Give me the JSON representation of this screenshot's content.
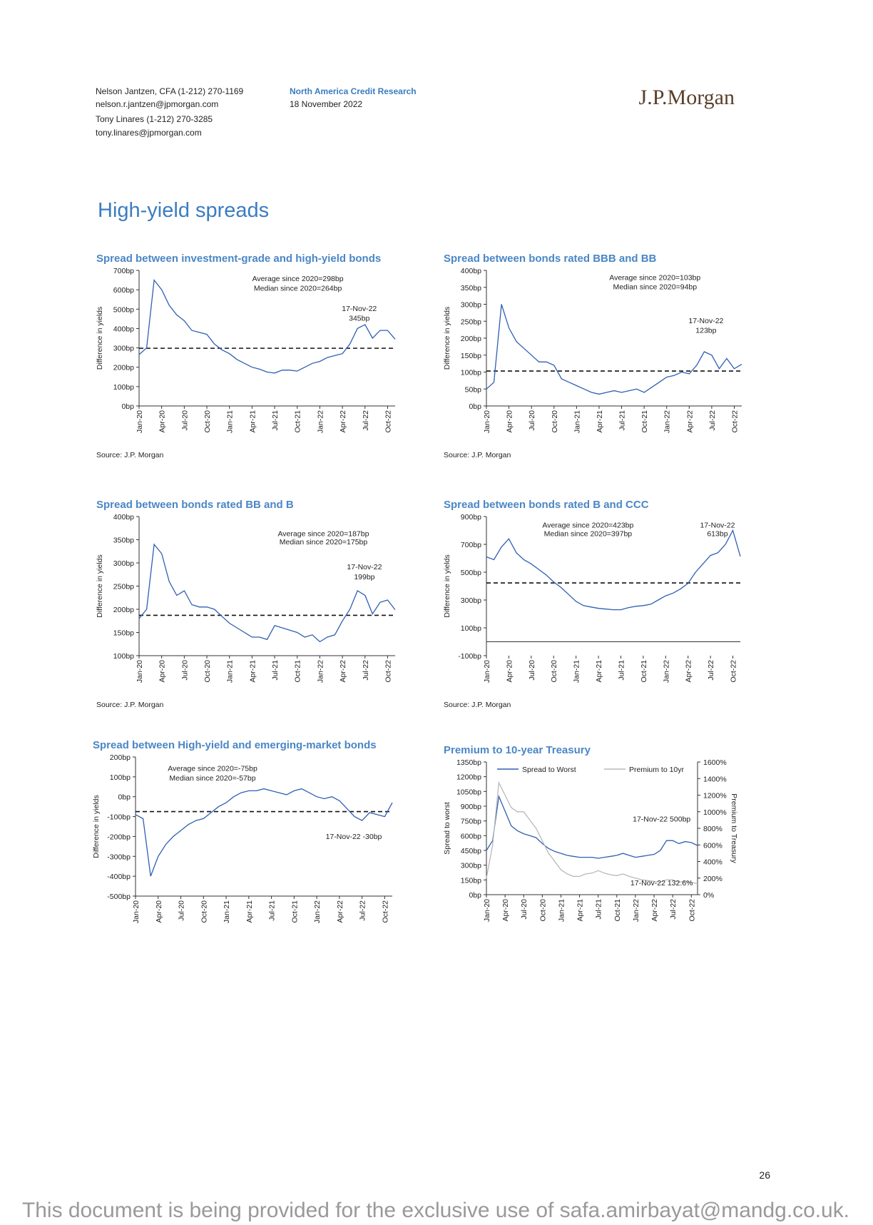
{
  "header": {
    "authors": [
      "Nelson Jantzen, CFA (1-212) 270-1169",
      "nelson.r.jantzen@jpmorgan.com",
      "Tony Linares (1-212) 270-3285",
      "tony.linares@jpmorgan.com"
    ],
    "department": "North America Credit Research",
    "date": "18 November 2022",
    "logo": "J.P.Morgan"
  },
  "section_title": "High-yield spreads",
  "chart_data": [
    {
      "type": "line",
      "title": "Spread between investment-grade and high-yield bonds",
      "y_label": "Difference in yields",
      "x": [
        "Jan-20",
        "Feb-20",
        "Mar-20",
        "Apr-20",
        "May-20",
        "Jun-20",
        "Jul-20",
        "Aug-20",
        "Sep-20",
        "Oct-20",
        "Nov-20",
        "Dec-20",
        "Jan-21",
        "Feb-21",
        "Mar-21",
        "Apr-21",
        "May-21",
        "Jun-21",
        "Jul-21",
        "Aug-21",
        "Sep-21",
        "Oct-21",
        "Nov-21",
        "Dec-21",
        "Jan-22",
        "Feb-22",
        "Mar-22",
        "Apr-22",
        "May-22",
        "Jun-22",
        "Jul-22",
        "Aug-22",
        "Sep-22",
        "Oct-22",
        "Nov-22"
      ],
      "xticks": [
        "Jan-20",
        "Apr-20",
        "Jul-20",
        "Oct-20",
        "Jan-21",
        "Apr-21",
        "Jul-21",
        "Oct-21",
        "Jan-22",
        "Apr-22",
        "Jul-22",
        "Oct-22"
      ],
      "ylim": [
        0,
        700
      ],
      "yticks": [
        {
          "value": 0,
          "label": "0bp"
        },
        {
          "value": 100,
          "label": "100bp"
        },
        {
          "value": 200,
          "label": "200bp"
        },
        {
          "value": 300,
          "label": "300bp"
        },
        {
          "value": 400,
          "label": "400bp"
        },
        {
          "value": 500,
          "label": "500bp"
        },
        {
          "value": 600,
          "label": "600bp"
        },
        {
          "value": 700,
          "label": "700bp"
        }
      ],
      "series": [
        {
          "color": "#2f5fb3",
          "values": [
            265,
            300,
            650,
            600,
            520,
            470,
            440,
            390,
            380,
            370,
            320,
            290,
            270,
            240,
            220,
            200,
            190,
            175,
            170,
            185,
            185,
            180,
            200,
            220,
            230,
            250,
            260,
            270,
            320,
            400,
            420,
            350,
            390,
            390,
            345
          ]
        }
      ],
      "reference_line": 298,
      "annotations": [
        "Average since 2020=298bp",
        "Median since 2020=264bp",
        "17-Nov-22",
        "345bp"
      ],
      "source": "Source: J.P. Morgan"
    },
    {
      "type": "line",
      "title": "Spread between bonds rated BBB and BB",
      "y_label": "Difference in yields",
      "x": [
        "Jan-20",
        "Feb-20",
        "Mar-20",
        "Apr-20",
        "May-20",
        "Jun-20",
        "Jul-20",
        "Aug-20",
        "Sep-20",
        "Oct-20",
        "Nov-20",
        "Dec-20",
        "Jan-21",
        "Feb-21",
        "Mar-21",
        "Apr-21",
        "May-21",
        "Jun-21",
        "Jul-21",
        "Aug-21",
        "Sep-21",
        "Oct-21",
        "Nov-21",
        "Dec-21",
        "Jan-22",
        "Feb-22",
        "Mar-22",
        "Apr-22",
        "May-22",
        "Jun-22",
        "Jul-22",
        "Aug-22",
        "Sep-22",
        "Oct-22",
        "Nov-22"
      ],
      "xticks": [
        "Jan-20",
        "Apr-20",
        "Jul-20",
        "Oct-20",
        "Jan-21",
        "Apr-21",
        "Jul-21",
        "Oct-21",
        "Jan-22",
        "Apr-22",
        "Jul-22",
        "Oct-22"
      ],
      "ylim": [
        0,
        400
      ],
      "yticks": [
        {
          "value": 0,
          "label": "0bp"
        },
        {
          "value": 50,
          "label": "50bp"
        },
        {
          "value": 100,
          "label": "100bp"
        },
        {
          "value": 150,
          "label": "150bp"
        },
        {
          "value": 200,
          "label": "200bp"
        },
        {
          "value": 250,
          "label": "250bp"
        },
        {
          "value": 300,
          "label": "300bp"
        },
        {
          "value": 350,
          "label": "350bp"
        },
        {
          "value": 400,
          "label": "400bp"
        }
      ],
      "series": [
        {
          "color": "#2f5fb3",
          "values": [
            50,
            70,
            300,
            230,
            190,
            170,
            150,
            130,
            130,
            120,
            80,
            70,
            60,
            50,
            40,
            35,
            40,
            45,
            40,
            45,
            50,
            40,
            55,
            70,
            85,
            90,
            100,
            95,
            120,
            160,
            150,
            110,
            140,
            110,
            123
          ]
        }
      ],
      "reference_line": 103,
      "annotations": [
        "Average since 2020=103bp",
        "Median since 2020=94bp",
        "17-Nov-22",
        "123bp"
      ],
      "source": "Source: J.P. Morgan"
    },
    {
      "type": "line",
      "title": "Spread between bonds rated BB and B",
      "y_label": "Difference in yields",
      "x": [
        "Jan-20",
        "Feb-20",
        "Mar-20",
        "Apr-20",
        "May-20",
        "Jun-20",
        "Jul-20",
        "Aug-20",
        "Sep-20",
        "Oct-20",
        "Nov-20",
        "Dec-20",
        "Jan-21",
        "Feb-21",
        "Mar-21",
        "Apr-21",
        "May-21",
        "Jun-21",
        "Jul-21",
        "Aug-21",
        "Sep-21",
        "Oct-21",
        "Nov-21",
        "Dec-21",
        "Jan-22",
        "Feb-22",
        "Mar-22",
        "Apr-22",
        "May-22",
        "Jun-22",
        "Jul-22",
        "Aug-22",
        "Sep-22",
        "Oct-22",
        "Nov-22"
      ],
      "xticks": [
        "Jan-20",
        "Apr-20",
        "Jul-20",
        "Oct-20",
        "Jan-21",
        "Apr-21",
        "Jul-21",
        "Oct-21",
        "Jan-22",
        "Apr-22",
        "Jul-22",
        "Oct-22"
      ],
      "ylim": [
        100,
        400
      ],
      "yticks": [
        {
          "value": 100,
          "label": "100bp"
        },
        {
          "value": 150,
          "label": "150bp"
        },
        {
          "value": 200,
          "label": "200bp"
        },
        {
          "value": 250,
          "label": "250bp"
        },
        {
          "value": 300,
          "label": "300bp"
        },
        {
          "value": 350,
          "label": "350bp"
        },
        {
          "value": 400,
          "label": "400bp"
        }
      ],
      "series": [
        {
          "color": "#2f5fb3",
          "values": [
            180,
            200,
            340,
            320,
            260,
            230,
            240,
            210,
            205,
            205,
            200,
            185,
            170,
            160,
            150,
            140,
            140,
            135,
            165,
            160,
            155,
            150,
            140,
            145,
            130,
            140,
            145,
            175,
            200,
            240,
            230,
            190,
            215,
            220,
            199
          ]
        }
      ],
      "reference_line": 187,
      "annotations": [
        "Average since 2020=187bp",
        "Median since 2020=175bp",
        "17-Nov-22",
        "199bp"
      ],
      "source": "Source: J.P. Morgan"
    },
    {
      "type": "line",
      "title": "Spread between bonds rated B and CCC",
      "y_label": "Difference in yields",
      "x": [
        "Jan-20",
        "Feb-20",
        "Mar-20",
        "Apr-20",
        "May-20",
        "Jun-20",
        "Jul-20",
        "Aug-20",
        "Sep-20",
        "Oct-20",
        "Nov-20",
        "Dec-20",
        "Jan-21",
        "Feb-21",
        "Mar-21",
        "Apr-21",
        "May-21",
        "Jun-21",
        "Jul-21",
        "Aug-21",
        "Sep-21",
        "Oct-21",
        "Nov-21",
        "Dec-21",
        "Jan-22",
        "Feb-22",
        "Mar-22",
        "Apr-22",
        "May-22",
        "Jun-22",
        "Jul-22",
        "Aug-22",
        "Sep-22",
        "Oct-22",
        "Nov-22"
      ],
      "xticks": [
        "Jan-20",
        "Apr-20",
        "Jul-20",
        "Oct-20",
        "Jan-21",
        "Apr-21",
        "Jul-21",
        "Oct-21",
        "Jan-22",
        "Apr-22",
        "Jul-22",
        "Oct-22"
      ],
      "ylim": [
        -100,
        900
      ],
      "yticks": [
        {
          "value": -100,
          "label": "-100bp"
        },
        {
          "value": 100,
          "label": "100bp"
        },
        {
          "value": 300,
          "label": "300bp"
        },
        {
          "value": 500,
          "label": "500bp"
        },
        {
          "value": 700,
          "label": "700bp"
        },
        {
          "value": 900,
          "label": "900bp"
        }
      ],
      "series": [
        {
          "color": "#2f5fb3",
          "values": [
            610,
            590,
            680,
            740,
            640,
            590,
            560,
            520,
            480,
            430,
            390,
            340,
            290,
            260,
            250,
            240,
            235,
            230,
            230,
            245,
            255,
            260,
            270,
            300,
            330,
            350,
            380,
            420,
            500,
            560,
            620,
            640,
            700,
            800,
            613
          ]
        }
      ],
      "reference_line": 423,
      "annotations": [
        "Average since 2020=423bp",
        "Median since 2020=397bp",
        "17-Nov-22",
        "613bp"
      ],
      "source": "Source: J.P. Morgan"
    },
    {
      "type": "line",
      "title": "Spread between High-yield and emerging-market bonds",
      "y_label": "Difference in yields",
      "x": [
        "Jan-20",
        "Feb-20",
        "Mar-20",
        "Apr-20",
        "May-20",
        "Jun-20",
        "Jul-20",
        "Aug-20",
        "Sep-20",
        "Oct-20",
        "Nov-20",
        "Dec-20",
        "Jan-21",
        "Feb-21",
        "Mar-21",
        "Apr-21",
        "May-21",
        "Jun-21",
        "Jul-21",
        "Aug-21",
        "Sep-21",
        "Oct-21",
        "Nov-21",
        "Dec-21",
        "Jan-22",
        "Feb-22",
        "Mar-22",
        "Apr-22",
        "May-22",
        "Jun-22",
        "Jul-22",
        "Aug-22",
        "Sep-22",
        "Oct-22",
        "Nov-22"
      ],
      "xticks": [
        "Jan-20",
        "Apr-20",
        "Jul-20",
        "Oct-20",
        "Jan-21",
        "Apr-21",
        "Jul-21",
        "Oct-21",
        "Jan-22",
        "Apr-22",
        "Jul-22",
        "Oct-22"
      ],
      "ylim": [
        -500,
        200
      ],
      "yticks": [
        {
          "value": -500,
          "label": "-500bp"
        },
        {
          "value": -400,
          "label": "-400bp"
        },
        {
          "value": -300,
          "label": "-300bp"
        },
        {
          "value": -200,
          "label": "-200bp"
        },
        {
          "value": -100,
          "label": "-100bp"
        },
        {
          "value": 0,
          "label": "0bp"
        },
        {
          "value": 100,
          "label": "100bp"
        },
        {
          "value": 200,
          "label": "200bp"
        }
      ],
      "series": [
        {
          "color": "#2f5fb3",
          "values": [
            -90,
            -110,
            -400,
            -300,
            -240,
            -200,
            -170,
            -140,
            -120,
            -110,
            -80,
            -50,
            -30,
            0,
            20,
            30,
            30,
            40,
            30,
            20,
            10,
            30,
            40,
            20,
            0,
            -10,
            0,
            -20,
            -60,
            -100,
            -120,
            -80,
            -90,
            -100,
            -30
          ]
        }
      ],
      "reference_line": -75,
      "annotations": [
        "Average since 2020=-75bp",
        "Median since 2020=-57bp",
        "17-Nov-22 -30bp"
      ]
    },
    {
      "type": "line",
      "title": "Premium to 10-year Treasury",
      "y_label": "Spread to worst",
      "y2_label": "Premium to Treasury",
      "x": [
        "Jan-20",
        "Feb-20",
        "Mar-20",
        "Apr-20",
        "May-20",
        "Jun-20",
        "Jul-20",
        "Aug-20",
        "Sep-20",
        "Oct-20",
        "Nov-20",
        "Dec-20",
        "Jan-21",
        "Feb-21",
        "Mar-21",
        "Apr-21",
        "May-21",
        "Jun-21",
        "Jul-21",
        "Aug-21",
        "Sep-21",
        "Oct-21",
        "Nov-21",
        "Dec-21",
        "Jan-22",
        "Feb-22",
        "Mar-22",
        "Apr-22",
        "May-22",
        "Jun-22",
        "Jul-22",
        "Aug-22",
        "Sep-22",
        "Oct-22",
        "Nov-22"
      ],
      "xticks": [
        "Jan-20",
        "Apr-20",
        "Jul-20",
        "Oct-20",
        "Jan-21",
        "Apr-21",
        "Jul-21",
        "Oct-21",
        "Jan-22",
        "Apr-22",
        "Jul-22",
        "Oct-22"
      ],
      "ylim": [
        0,
        1350
      ],
      "yticks": [
        {
          "value": 0,
          "label": "0bp"
        },
        {
          "value": 150,
          "label": "150bp"
        },
        {
          "value": 300,
          "label": "300bp"
        },
        {
          "value": 450,
          "label": "450bp"
        },
        {
          "value": 600,
          "label": "600bp"
        },
        {
          "value": 750,
          "label": "750bp"
        },
        {
          "value": 900,
          "label": "900bp"
        },
        {
          "value": 1050,
          "label": "1050bp"
        },
        {
          "value": 1200,
          "label": "1200bp"
        },
        {
          "value": 1350,
          "label": "1350bp"
        }
      ],
      "y2lim": [
        0,
        1600
      ],
      "y2ticks": [
        {
          "value": 0,
          "label": "0%"
        },
        {
          "value": 200,
          "label": "200%"
        },
        {
          "value": 400,
          "label": "400%"
        },
        {
          "value": 600,
          "label": "600%"
        },
        {
          "value": 800,
          "label": "800%"
        },
        {
          "value": 1000,
          "label": "1000%"
        },
        {
          "value": 1200,
          "label": "1200%"
        },
        {
          "value": 1400,
          "label": "1400%"
        },
        {
          "value": 1600,
          "label": "1600%"
        }
      ],
      "series": [
        {
          "name": "Spread to Worst",
          "color": "#2f5fb3",
          "values": [
            450,
            550,
            1000,
            850,
            700,
            650,
            620,
            600,
            580,
            520,
            470,
            440,
            420,
            400,
            390,
            380,
            380,
            380,
            370,
            380,
            390,
            400,
            420,
            400,
            380,
            390,
            400,
            410,
            450,
            550,
            550,
            520,
            540,
            530,
            500
          ]
        },
        {
          "name": "Premium to 10yr",
          "color": "#b8b8b8",
          "axis": "y2",
          "values": [
            200,
            600,
            1350,
            1200,
            1050,
            1000,
            1000,
            900,
            800,
            650,
            500,
            400,
            300,
            250,
            220,
            220,
            250,
            260,
            290,
            260,
            240,
            230,
            250,
            220,
            200,
            180,
            170,
            160,
            150,
            180,
            180,
            150,
            160,
            150,
            132.6
          ]
        }
      ],
      "annotations": [
        "17-Nov-22 500bp",
        "17-Nov-22 132.6%"
      ]
    }
  ],
  "page_number": "26",
  "watermark": "This document is being provided for the exclusive use of safa.amirbayat@mandg.co.uk."
}
